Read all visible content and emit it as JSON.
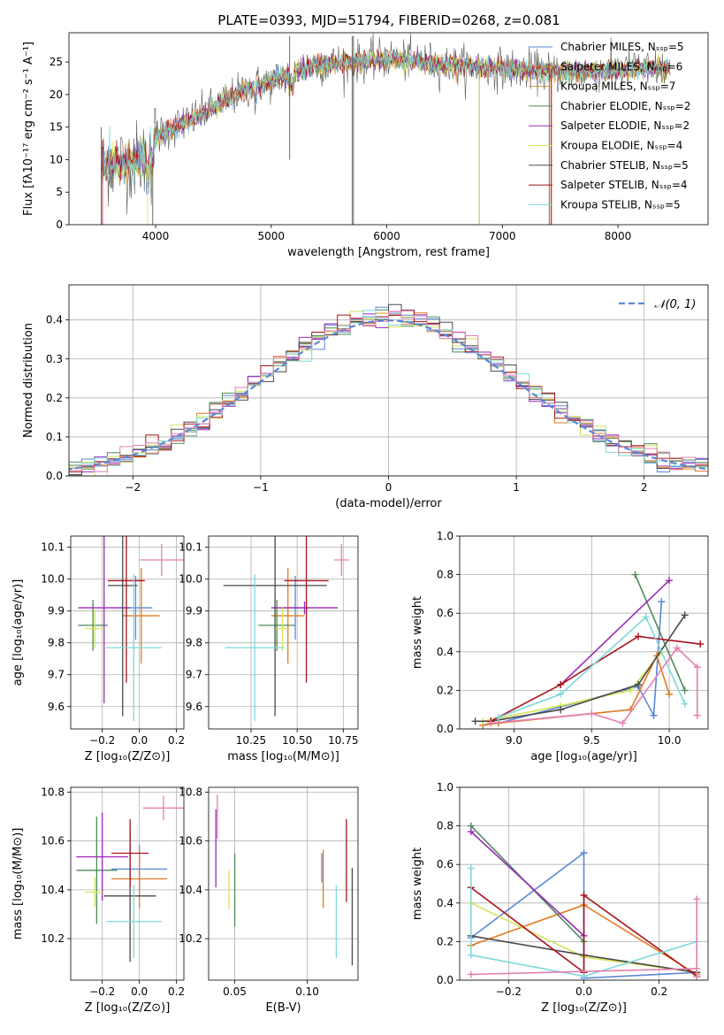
{
  "figure_title": "PLATE=0393, MJD=51794, FIBERID=0268, z=0.081",
  "colors": {
    "Chabrier MILES": "#5b87d8",
    "Salpeter MILES": "#e07b25",
    "Kroupa MILES": "#c39a3a",
    "Chabrier ELODIE": "#4e8a5a",
    "Salpeter ELODIE": "#9b2ab8",
    "Kroupa ELODIE": "#d4e35a",
    "Chabrier STELIB": "#4a4a4a",
    "Salpeter STELIB": "#a8141c",
    "Kroupa STELIB": "#7fd8db",
    "extra": "#e37fb0",
    "normal": "#5b87d8"
  },
  "chart_data": [
    {
      "id": "spectrum",
      "type": "line",
      "xlabel": "wavelength [Angstrom, rest frame]",
      "ylabel": "Flux [fλ10⁻¹⁷ erg cm⁻² s⁻¹ A⁻¹]",
      "xlim": [
        3250,
        8780
      ],
      "ylim": [
        0,
        29.5
      ],
      "xticks": [
        4000,
        5000,
        6000,
        7000,
        8000
      ],
      "yticks": [
        0,
        5,
        10,
        15,
        20,
        25
      ],
      "legend_position": "top-right",
      "legend": [
        "Chabrier MILES, Nₛₛₚ=5",
        "Salpeter MILES, Nₛₛₚ=6",
        "Kroupa MILES, Nₛₛₚ=7",
        "Chabrier ELODIE, Nₛₛₚ=2",
        "Salpeter ELODIE, Nₛₛₚ=2",
        "Kroupa ELODIE, Nₛₛₚ=4",
        "Chabrier STELIB, Nₛₛₚ=5",
        "Salpeter STELIB, Nₛₛₚ=4",
        "Kroupa STELIB, Nₛₛₚ=5"
      ],
      "continuum": {
        "x": [
          3530,
          3700,
          3900,
          4000,
          4100,
          4300,
          4500,
          4800,
          5000,
          5200,
          5400,
          5700,
          6000,
          6300,
          6600,
          7000,
          7400,
          7800,
          8200,
          8450
        ],
        "y": [
          9,
          9.5,
          10,
          13.5,
          14.5,
          16,
          18,
          21,
          22,
          23.5,
          24.5,
          25,
          25.5,
          25,
          24.5,
          24,
          23.5,
          23.5,
          24,
          24
        ]
      }
    },
    {
      "id": "residuals",
      "type": "histogram",
      "xlabel": "(data-model)/error",
      "ylabel": "Normed distribution",
      "xlim": [
        -2.5,
        2.5
      ],
      "ylim": [
        0,
        0.49
      ],
      "xticks": [
        -2,
        -1,
        0,
        1,
        2
      ],
      "yticks": [
        0.0,
        0.1,
        0.2,
        0.3,
        0.4
      ],
      "legend": "𝒩(0, 1)",
      "bin_width": 0.1
    },
    {
      "id": "age_vs_Z",
      "type": "scatter",
      "xlabel": "Z [log₁₀(Z/Z⊙)]",
      "ylabel": "age  [log₁₀(age/yr)]",
      "xlim": [
        -0.37,
        0.24
      ],
      "ylim": [
        9.53,
        10.135
      ],
      "xticks": [
        -0.2,
        0.0,
        0.2
      ],
      "yticks": [
        9.6,
        9.7,
        9.8,
        9.9,
        10.0,
        10.1
      ],
      "points": [
        {
          "model": "Chabrier MILES",
          "x": -0.02,
          "y": 9.91,
          "xerr": 0.09,
          "yerr": 0.1
        },
        {
          "model": "Salpeter MILES",
          "x": 0.01,
          "y": 9.885,
          "xerr": 0.1,
          "yerr": 0.15
        },
        {
          "model": "Chabrier ELODIE",
          "x": -0.25,
          "y": 9.855,
          "xerr": 0.08,
          "yerr": 0.08
        },
        {
          "model": "Salpeter ELODIE",
          "x": -0.19,
          "y": 9.91,
          "xerr": 0.14,
          "yerr": 0.3
        },
        {
          "model": "Kroupa ELODIE",
          "x": -0.24,
          "y": 9.845,
          "xerr": 0.05,
          "yerr": 0.06
        },
        {
          "model": "Chabrier STELIB",
          "x": -0.09,
          "y": 9.98,
          "xerr": 0.08,
          "yerr": 0.41
        },
        {
          "model": "Salpeter STELIB",
          "x": -0.07,
          "y": 9.995,
          "xerr": 0.1,
          "yerr": 0.32
        },
        {
          "model": "Kroupa STELIB",
          "x": -0.03,
          "y": 9.785,
          "xerr": 0.15,
          "yerr": 0.23
        },
        {
          "model": "extra",
          "x": 0.12,
          "y": 10.06,
          "xerr": 0.12,
          "yerr": 0.05
        }
      ]
    },
    {
      "id": "age_vs_mass",
      "type": "scatter",
      "xlabel": "mass [log₁₀(M/M⊙)]",
      "ylabel": "",
      "xlim": [
        10.02,
        10.83
      ],
      "ylim": [
        9.53,
        10.135
      ],
      "xticks": [
        10.25,
        10.5,
        10.75
      ],
      "yticks": [
        9.6,
        9.7,
        9.8,
        9.9,
        10.0,
        10.1
      ],
      "points": [
        {
          "model": "Chabrier MILES",
          "x": 10.49,
          "y": 9.91,
          "xerr": 0.08,
          "yerr": 0.1
        },
        {
          "model": "Salpeter MILES",
          "x": 10.45,
          "y": 9.885,
          "xerr": 0.09,
          "yerr": 0.15
        },
        {
          "model": "Chabrier ELODIE",
          "x": 10.39,
          "y": 9.855,
          "xerr": 0.1,
          "yerr": 0.08
        },
        {
          "model": "Salpeter ELODIE",
          "x": 10.54,
          "y": 9.91,
          "xerr": 0.18,
          "yerr": 0.02
        },
        {
          "model": "Kroupa ELODIE",
          "x": 10.42,
          "y": 9.845,
          "xerr": 0.04,
          "yerr": 0.07
        },
        {
          "model": "Chabrier STELIB",
          "x": 10.38,
          "y": 9.98,
          "xerr": 0.28,
          "yerr": 0.41
        },
        {
          "model": "Salpeter STELIB",
          "x": 10.55,
          "y": 9.995,
          "xerr": 0.12,
          "yerr": 0.32
        },
        {
          "model": "Kroupa STELIB",
          "x": 10.27,
          "y": 9.785,
          "xerr": 0.16,
          "yerr": 0.23
        },
        {
          "model": "extra",
          "x": 10.74,
          "y": 10.06,
          "xerr": 0.04,
          "yerr": 0.05
        }
      ]
    },
    {
      "id": "weight_vs_age",
      "type": "line",
      "xlabel": "age  [log₁₀(age/yr)]",
      "ylabel": "mass weight",
      "xlim": [
        8.65,
        10.25
      ],
      "ylim": [
        0.0,
        1.0
      ],
      "xticks": [
        9.0,
        9.5,
        10.0
      ],
      "yticks": [
        0.0,
        0.2,
        0.4,
        0.6,
        0.8,
        1.0
      ],
      "series": [
        {
          "model": "Chabrier MILES",
          "x": [
            8.8,
            8.9,
            9.8,
            9.9,
            9.95
          ],
          "y": [
            0.02,
            0.03,
            0.22,
            0.07,
            0.66
          ]
        },
        {
          "model": "Salpeter MILES",
          "x": [
            8.8,
            8.9,
            9.75,
            9.92,
            10.0
          ],
          "y": [
            0.02,
            0.03,
            0.1,
            0.38,
            0.18
          ]
        },
        {
          "model": "Chabrier ELODIE",
          "x": [
            9.78,
            10.1
          ],
          "y": [
            0.8,
            0.2
          ]
        },
        {
          "model": "Salpeter ELODIE",
          "x": [
            9.3,
            10.0
          ],
          "y": [
            0.23,
            0.77
          ]
        },
        {
          "model": "Kroupa ELODIE",
          "x": [
            8.8,
            9.3,
            9.75,
            9.95
          ],
          "y": [
            0.04,
            0.12,
            0.2,
            0.4
          ]
        },
        {
          "model": "Chabrier STELIB",
          "x": [
            8.75,
            8.85,
            9.3,
            9.8,
            10.1
          ],
          "y": [
            0.04,
            0.04,
            0.1,
            0.23,
            0.59
          ]
        },
        {
          "model": "Salpeter STELIB",
          "x": [
            8.85,
            9.3,
            9.8,
            10.2
          ],
          "y": [
            0.04,
            0.23,
            0.48,
            0.44
          ]
        },
        {
          "model": "Kroupa STELIB",
          "x": [
            8.9,
            9.3,
            9.85,
            10.1
          ],
          "y": [
            0.06,
            0.18,
            0.58,
            0.13
          ]
        },
        {
          "model": "extra",
          "x": [
            8.85,
            9.5,
            9.7,
            10.05,
            10.18,
            10.18
          ],
          "y": [
            0.03,
            0.08,
            0.03,
            0.42,
            0.32,
            0.07
          ]
        }
      ]
    },
    {
      "id": "mass_vs_Z",
      "type": "scatter",
      "xlabel": "Z [log₁₀(Z/Z⊙)]",
      "ylabel": "mass [log₁₀(M/M⊙)]",
      "xlim": [
        -0.37,
        0.24
      ],
      "ylim": [
        10.03,
        10.82
      ],
      "xticks": [
        -0.2,
        0.0,
        0.2
      ],
      "yticks": [
        10.2,
        10.4,
        10.6,
        10.8
      ],
      "points": [
        {
          "model": "Chabrier MILES",
          "x": 0.0,
          "y": 10.485,
          "xerr": 0.15,
          "yerr": 0.1
        },
        {
          "model": "Salpeter MILES",
          "x": 0.0,
          "y": 10.445,
          "xerr": 0.15,
          "yerr": 0.12
        },
        {
          "model": "Chabrier ELODIE",
          "x": -0.23,
          "y": 10.48,
          "xerr": 0.11,
          "yerr": 0.22
        },
        {
          "model": "Salpeter ELODIE",
          "x": -0.2,
          "y": 10.535,
          "xerr": 0.14,
          "yerr": 0.18
        },
        {
          "model": "Kroupa ELODIE",
          "x": -0.24,
          "y": 10.39,
          "xerr": 0.05,
          "yerr": 0.06
        },
        {
          "model": "Chabrier STELIB",
          "x": -0.05,
          "y": 10.375,
          "xerr": 0.14,
          "yerr": 0.27
        },
        {
          "model": "Salpeter STELIB",
          "x": -0.05,
          "y": 10.55,
          "xerr": 0.1,
          "yerr": 0.14
        },
        {
          "model": "Kroupa STELIB",
          "x": -0.03,
          "y": 10.27,
          "xerr": 0.15,
          "yerr": 0.15
        },
        {
          "model": "extra",
          "x": 0.13,
          "y": 10.735,
          "xerr": 0.11,
          "yerr": 0.05
        }
      ]
    },
    {
      "id": "mass_vs_ebv",
      "type": "scatter",
      "xlabel": "E(B-V)",
      "ylabel": "",
      "xlim": [
        0.032,
        0.135
      ],
      "ylim": [
        10.03,
        10.82
      ],
      "xticks": [
        0.05,
        0.1
      ],
      "yticks": [
        10.2,
        10.4,
        10.6,
        10.8
      ],
      "points": [
        {
          "model": "Chabrier MILES",
          "x": 0.11,
          "y": 10.49,
          "xerr": 0.0,
          "yerr": 0.06
        },
        {
          "model": "Salpeter MILES",
          "x": 0.111,
          "y": 10.445,
          "xerr": 0.0,
          "yerr": 0.12
        },
        {
          "model": "Chabrier ELODIE",
          "x": 0.05,
          "y": 10.4,
          "xerr": 0.0,
          "yerr": 0.15
        },
        {
          "model": "Salpeter ELODIE",
          "x": 0.037,
          "y": 10.57,
          "xerr": 0.0,
          "yerr": 0.16
        },
        {
          "model": "Kroupa ELODIE",
          "x": 0.046,
          "y": 10.4,
          "xerr": 0.0,
          "yerr": 0.08
        },
        {
          "model": "Chabrier STELIB",
          "x": 0.131,
          "y": 10.29,
          "xerr": 0.0,
          "yerr": 0.2
        },
        {
          "model": "Salpeter STELIB",
          "x": 0.127,
          "y": 10.52,
          "xerr": 0.0,
          "yerr": 0.17
        },
        {
          "model": "Kroupa STELIB",
          "x": 0.12,
          "y": 10.27,
          "xerr": 0.0,
          "yerr": 0.15
        },
        {
          "model": "extra",
          "x": 0.038,
          "y": 10.7,
          "xerr": 0.0,
          "yerr": 0.09
        }
      ]
    },
    {
      "id": "weight_vs_Z",
      "type": "line",
      "xlabel": "Z [log₁₀(Z/Z⊙)]",
      "ylabel": "mass weight",
      "xlim": [
        -0.33,
        0.33
      ],
      "ylim": [
        0.0,
        1.0
      ],
      "xticks": [
        -0.2,
        0.0,
        0.2
      ],
      "yticks": [
        0.0,
        0.2,
        0.4,
        0.6,
        0.8,
        1.0
      ],
      "series": [
        {
          "model": "Chabrier MILES",
          "x": [
            -0.3,
            0.0,
            0.0,
            0.3
          ],
          "y": [
            0.22,
            0.66,
            0.01,
            0.04
          ]
        },
        {
          "model": "Salpeter MILES",
          "x": [
            -0.3,
            0.0,
            0.3
          ],
          "y": [
            0.18,
            0.39,
            0.03
          ]
        },
        {
          "model": "Chabrier ELODIE",
          "x": [
            -0.3,
            0.0
          ],
          "y": [
            0.8,
            0.2
          ]
        },
        {
          "model": "Salpeter ELODIE",
          "x": [
            -0.3,
            0.0
          ],
          "y": [
            0.77,
            0.23
          ]
        },
        {
          "model": "Kroupa ELODIE",
          "x": [
            -0.3,
            0.0,
            0.3
          ],
          "y": [
            0.4,
            0.12,
            0.04
          ]
        },
        {
          "model": "Chabrier STELIB",
          "x": [
            -0.3,
            0.0,
            0.3
          ],
          "y": [
            0.23,
            0.13,
            0.04
          ]
        },
        {
          "model": "Salpeter STELIB",
          "x": [
            -0.3,
            0.0,
            0.0,
            0.3
          ],
          "y": [
            0.48,
            0.04,
            0.44,
            0.02
          ]
        },
        {
          "model": "Kroupa STELIB",
          "x": [
            -0.3,
            -0.3,
            0.0,
            0.3
          ],
          "y": [
            0.58,
            0.13,
            0.02,
            0.2
          ]
        },
        {
          "model": "extra",
          "x": [
            -0.3,
            0.3,
            0.3,
            0.3
          ],
          "y": [
            0.03,
            0.06,
            0.42,
            0.02
          ]
        }
      ]
    }
  ]
}
